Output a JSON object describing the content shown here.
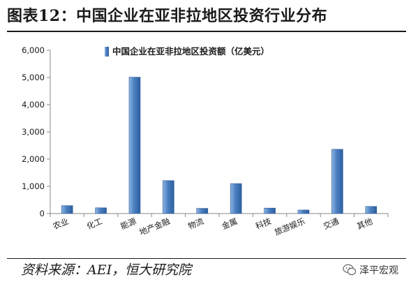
{
  "page": {
    "title": "图表12：中国企业在亚非拉地区投资行业分布",
    "source": "资料来源：AEI，恒大研究院",
    "watermark": "泽平宏观"
  },
  "colors": {
    "bar": "#4a7fc1",
    "bar_light": "#8fb4e0",
    "bar_dark": "#2d5f9e",
    "axis": "#888888"
  },
  "chart_data": {
    "type": "bar",
    "title": "",
    "legend": "中国企业在亚非拉地区投资额（亿美元）",
    "legend_position": "top-center",
    "categories": [
      "农业",
      "化工",
      "能源",
      "地产金融",
      "物流",
      "金属",
      "科技",
      "旅游娱乐",
      "交通",
      "其他"
    ],
    "series": [
      {
        "name": "中国企业在亚非拉地区投资额（亿美元）",
        "values": [
          290,
          210,
          5010,
          1210,
          190,
          1100,
          200,
          130,
          2360,
          260
        ]
      }
    ],
    "ylim": [
      0,
      6000
    ],
    "yticks": [
      0,
      1000,
      2000,
      3000,
      4000,
      5000,
      6000
    ],
    "ytick_labels": [
      "0",
      "1,000",
      "2,000",
      "3,000",
      "4,000",
      "5,000",
      "6,000"
    ],
    "grid": false,
    "xlabel": "",
    "ylabel": ""
  }
}
